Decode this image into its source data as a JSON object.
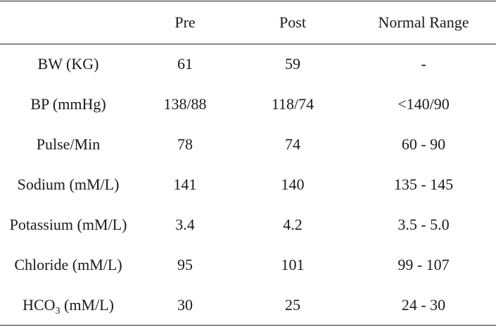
{
  "table": {
    "columns": [
      "",
      "Pre",
      "Post",
      "Normal Range"
    ],
    "rows": [
      {
        "parameter": "BW (KG)",
        "pre": "61",
        "post": "59",
        "normal": "-"
      },
      {
        "parameter": "BP (mmHg)",
        "pre": "138/88",
        "post": "118/74",
        "normal": "<140/90"
      },
      {
        "parameter": "Pulse/Min",
        "pre": "78",
        "post": "74",
        "normal": "60 - 90"
      },
      {
        "parameter": "Sodium (mM/L)",
        "pre": "141",
        "post": "140",
        "normal": "135 - 145"
      },
      {
        "parameter": "Potassium (mM/L)",
        "pre": "3.4",
        "post": "4.2",
        "normal": "3.5 - 5.0"
      },
      {
        "parameter": "Chloride (mM/L)",
        "pre": "95",
        "post": "101",
        "normal": "99 - 107"
      },
      {
        "parameter_prefix": "HCO",
        "parameter_sub": "3",
        "parameter_suffix": " (mM/L)",
        "pre": "30",
        "post": "25",
        "normal": "24 - 30"
      }
    ]
  }
}
